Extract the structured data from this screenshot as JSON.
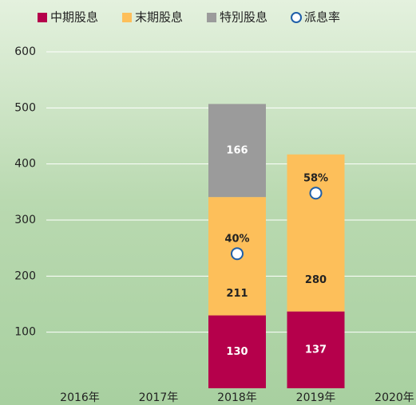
{
  "chart_data": {
    "type": "bar",
    "stacked": true,
    "categories": [
      "2016年",
      "2017年",
      "2018年",
      "2019年",
      "2020年"
    ],
    "series": [
      {
        "name": "中期股息",
        "color": "#b5004b",
        "values": [
          null,
          null,
          130,
          137,
          null
        ]
      },
      {
        "name": "末期股息",
        "color": "#fdbf5a",
        "values": [
          null,
          null,
          211,
          280,
          null
        ]
      },
      {
        "name": "特別股息",
        "color": "#9b9b9b",
        "values": [
          null,
          null,
          166,
          null,
          null
        ]
      },
      {
        "name": "派息率",
        "type": "scatter",
        "axis": "y2",
        "color": "#1f5fa8",
        "values": [
          null,
          null,
          40,
          58,
          null
        ],
        "value_labels": [
          null,
          null,
          "40%",
          "58%",
          null
        ]
      }
    ],
    "ylim": [
      0,
      600
    ],
    "yticks": [
      100,
      200,
      300,
      400,
      500,
      600
    ],
    "y2lim": [
      0,
      100
    ],
    "grid": true,
    "legend": "top"
  }
}
